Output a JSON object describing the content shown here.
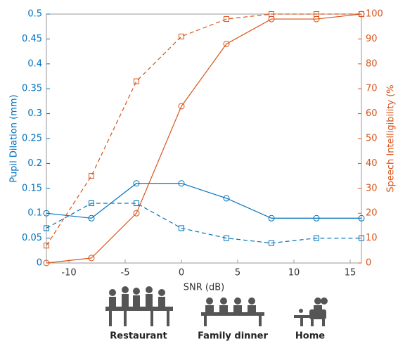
{
  "chart_data": {
    "type": "line",
    "x": [
      -12,
      -8,
      -4,
      0,
      4,
      8,
      12,
      16
    ],
    "xlim": [
      -12,
      16
    ],
    "xticks": [
      -10,
      -5,
      0,
      5,
      10,
      15
    ],
    "ylim": [
      0,
      0.5
    ],
    "yticks": [
      0,
      0.05,
      0.1,
      0.15,
      0.2,
      0.25,
      0.3,
      0.35,
      0.4,
      0.45,
      0.5
    ],
    "y2lim": [
      0,
      100
    ],
    "y2ticks": [
      0,
      10,
      20,
      30,
      40,
      50,
      60,
      70,
      80,
      90,
      100
    ],
    "x_label": "SNR (dB)",
    "y_label": "Pupil Dilation (mm)",
    "y2_label": "Speech Intelligibility (%",
    "series": [
      {
        "color": "#0072bd",
        "marker": "circle",
        "dashed": false,
        "values": [
          0.1,
          0.09,
          0.16,
          0.16,
          0.13,
          0.09,
          0.09,
          0.09
        ]
      },
      {
        "color": "#0072bd",
        "marker": "square",
        "dashed": true,
        "values": [
          0.07,
          0.12,
          0.12,
          0.07,
          0.05,
          0.04,
          0.05,
          0.05
        ]
      },
      {
        "color": "#d95319",
        "marker": "circle",
        "dashed": false,
        "axis": "y2",
        "values": [
          0,
          2,
          20,
          63,
          88,
          98,
          98,
          100
        ]
      },
      {
        "color": "#d95319",
        "marker": "square",
        "dashed": true,
        "axis": "y2",
        "values": [
          7,
          35,
          73,
          91,
          98,
          100,
          100,
          100
        ]
      }
    ],
    "scenes": [
      "Restaurant",
      "Family dinner",
      "Home"
    ]
  }
}
